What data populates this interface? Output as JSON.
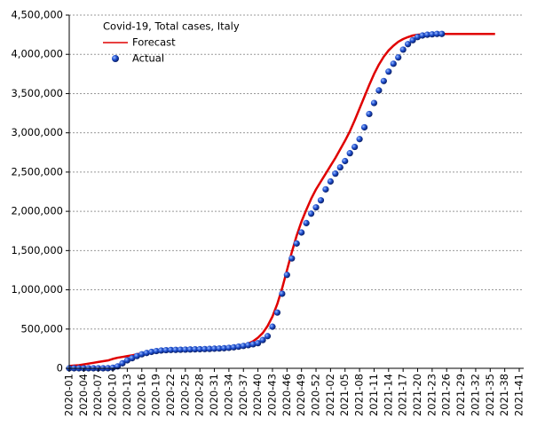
{
  "chart_data": {
    "type": "line",
    "title": "Covid-19, Total cases, Italy",
    "categories": [
      "2020-01",
      null,
      null,
      "2020-04",
      null,
      null,
      "2020-07",
      null,
      null,
      "2020-10",
      null,
      null,
      "2020-13",
      null,
      null,
      "2020-16",
      null,
      null,
      "2020-19",
      null,
      null,
      "2020-22",
      null,
      null,
      "2020-25",
      null,
      null,
      "2020-28",
      null,
      null,
      "2020-31",
      null,
      null,
      "2020-34",
      null,
      null,
      "2020-37",
      null,
      null,
      "2020-40",
      null,
      null,
      "2020-43",
      null,
      null,
      "2020-46",
      null,
      null,
      "2020-49",
      null,
      null,
      "2020-52",
      null,
      null,
      "2021-02",
      null,
      null,
      "2021-05",
      null,
      null,
      "2021-08",
      null,
      null,
      "2021-11",
      null,
      null,
      "2021-14",
      null,
      null,
      "2021-17",
      null,
      null,
      "2021-20",
      null,
      null,
      "2021-23",
      null,
      null,
      "2021-26",
      null,
      null,
      "2021-29",
      null,
      null,
      "2021-32",
      null,
      null,
      "2021-35",
      null,
      null,
      "2021-38",
      null,
      null,
      "2021-41"
    ],
    "series": [
      {
        "name": "Forecast",
        "color": "#e00000",
        "style": "line",
        "values": [
          30000,
          35000,
          40000,
          50000,
          60000,
          70000,
          80000,
          90000,
          100000,
          120000,
          135000,
          145000,
          155000,
          165000,
          180000,
          190000,
          200000,
          210000,
          215000,
          220000,
          222000,
          224000,
          225000,
          226000,
          227000,
          228000,
          230000,
          232000,
          234000,
          237000,
          240000,
          244000,
          250000,
          258000,
          268000,
          280000,
          295000,
          315000,
          345000,
          390000,
          450000,
          540000,
          660000,
          820000,
          1020000,
          1250000,
          1480000,
          1690000,
          1870000,
          2020000,
          2160000,
          2280000,
          2380000,
          2480000,
          2580000,
          2680000,
          2790000,
          2900000,
          3020000,
          3160000,
          3310000,
          3460000,
          3610000,
          3750000,
          3870000,
          3970000,
          4050000,
          4110000,
          4160000,
          4195000,
          4220000,
          4240000,
          4250000,
          4255000,
          4258000,
          4260000,
          4260000,
          4260000,
          4260000,
          4260000,
          4260000,
          4260000,
          4260000,
          4260000,
          4260000,
          4260000,
          4260000,
          4260000,
          4260000,
          null,
          null,
          null,
          null,
          null
        ]
      },
      {
        "name": "Actual",
        "color": "#1f4fd0",
        "style": "points",
        "values": [
          0,
          0,
          0,
          0,
          0,
          0,
          0,
          0,
          1000,
          7000,
          25000,
          64000,
          102000,
          129000,
          156000,
          179000,
          195000,
          209000,
          220000,
          227000,
          231000,
          234000,
          235000,
          237000,
          238000,
          240000,
          242000,
          243000,
          245000,
          247000,
          250000,
          252000,
          256000,
          261000,
          268000,
          276000,
          285000,
          295000,
          306000,
          320000,
          360000,
          410000,
          530000,
          710000,
          950000,
          1190000,
          1400000,
          1590000,
          1730000,
          1850000,
          1970000,
          2050000,
          2140000,
          2280000,
          2380000,
          2480000,
          2560000,
          2640000,
          2740000,
          2820000,
          2920000,
          3070000,
          3240000,
          3380000,
          3540000,
          3660000,
          3780000,
          3880000,
          3960000,
          4060000,
          4130000,
          4180000,
          4220000,
          4240000,
          4250000,
          4255000,
          4260000,
          4260000,
          null,
          null,
          null,
          null,
          null,
          null,
          null,
          null,
          null,
          null,
          null,
          null,
          null,
          null,
          null,
          null
        ]
      }
    ],
    "ylim": [
      0,
      4500000
    ],
    "yticks": [
      {
        "value": 0,
        "label": "0"
      },
      {
        "value": 500000,
        "label": "500,000"
      },
      {
        "value": 1000000,
        "label": "1,000,000"
      },
      {
        "value": 1500000,
        "label": "1,500,000"
      },
      {
        "value": 2000000,
        "label": "2,000,000"
      },
      {
        "value": 2500000,
        "label": "2,500,000"
      },
      {
        "value": 3000000,
        "label": "3,000,000"
      },
      {
        "value": 3500000,
        "label": "3,500,000"
      },
      {
        "value": 4000000,
        "label": "4,000,000"
      },
      {
        "value": 4500000,
        "label": "4,500,000"
      }
    ],
    "grid": true
  }
}
